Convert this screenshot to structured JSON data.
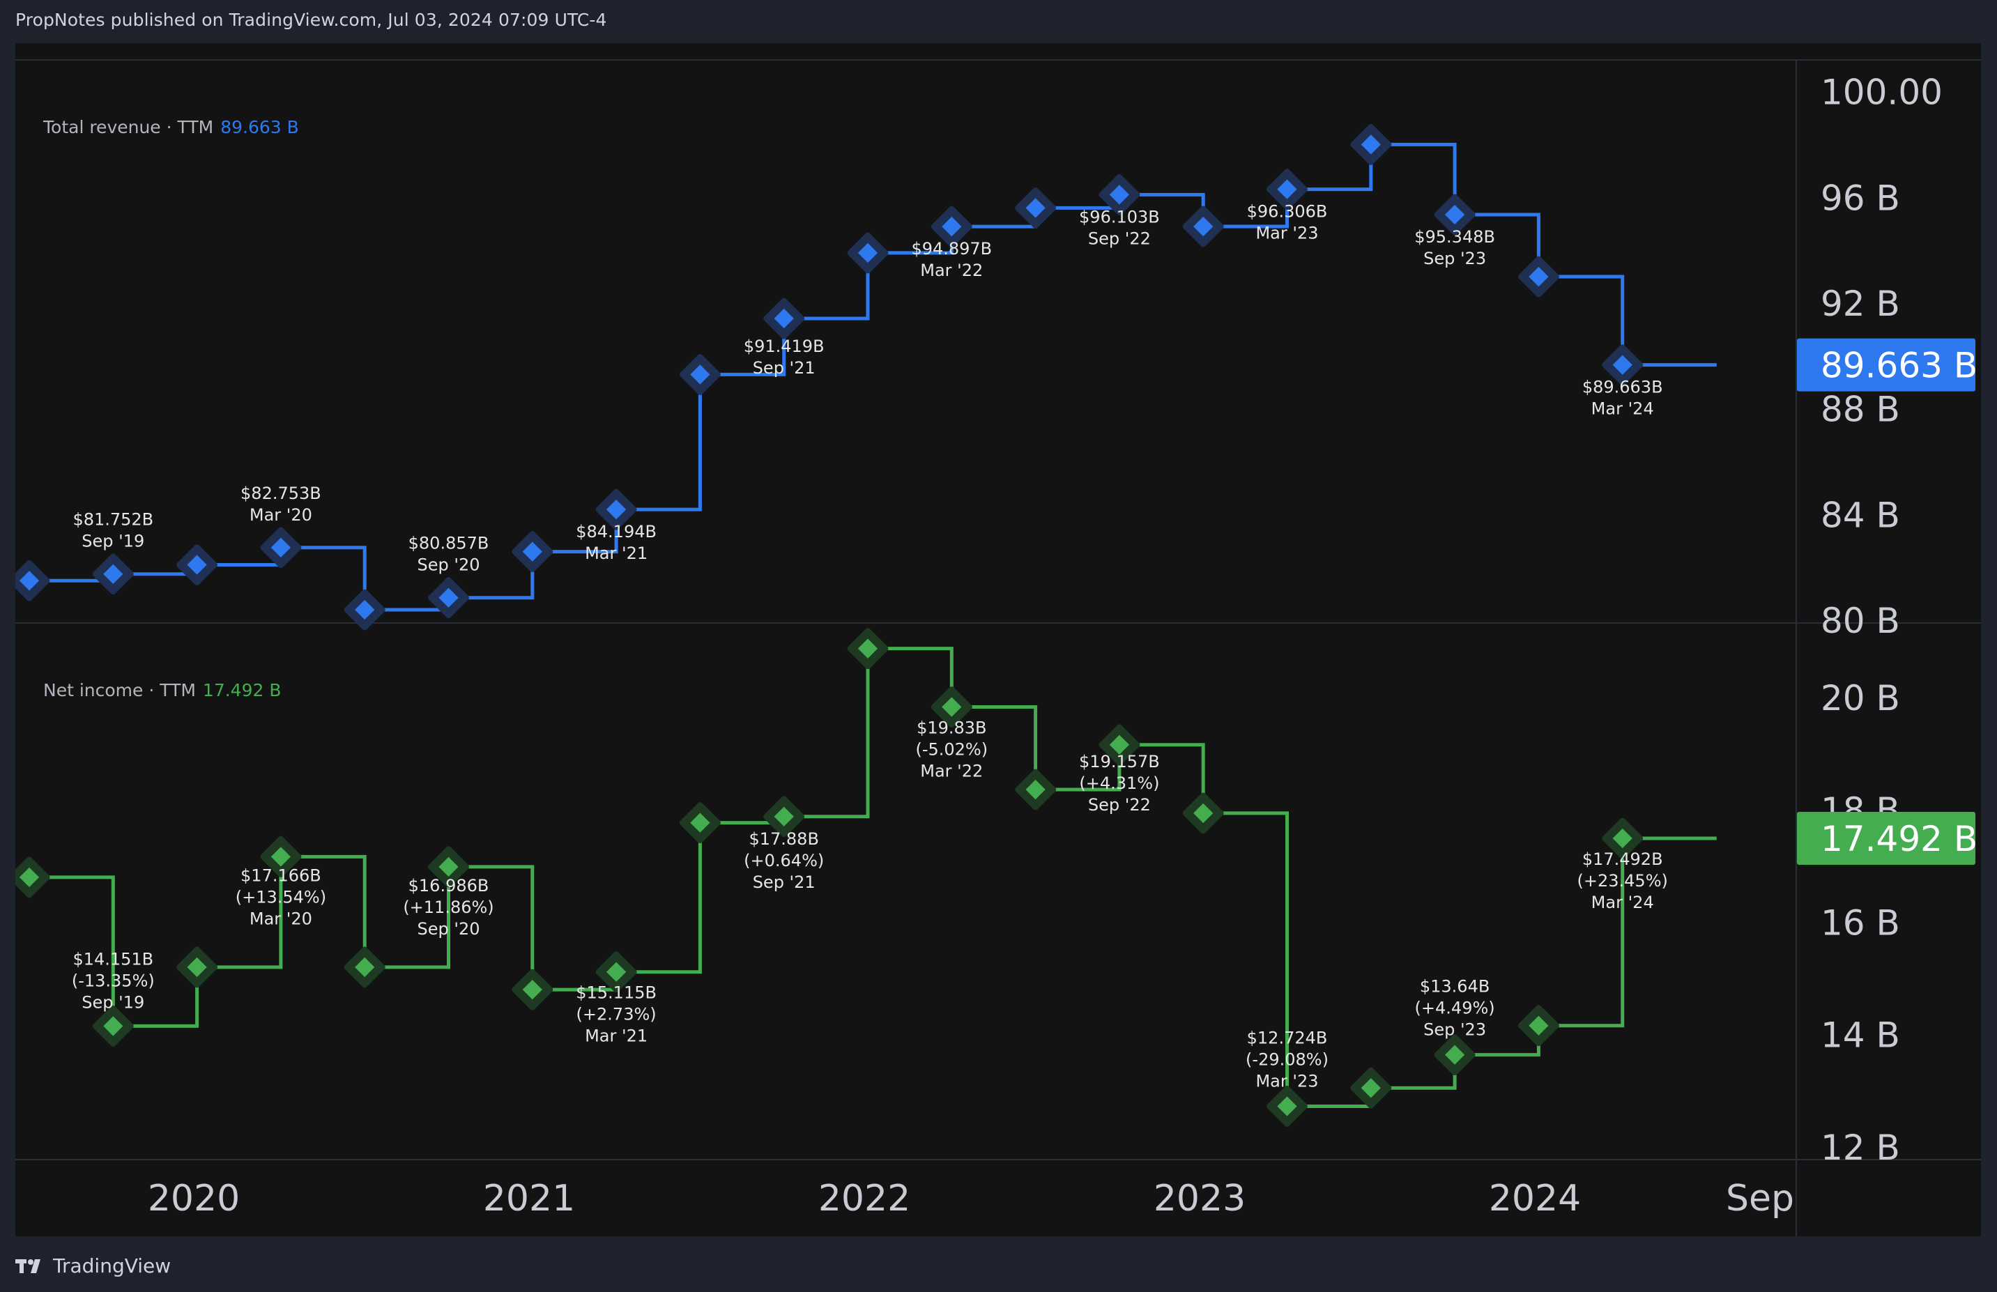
{
  "header": {
    "text": "PropNotes published on TradingView.com, Jul 03, 2024 07:09 UTC-4"
  },
  "footer": {
    "brand": "TradingView"
  },
  "colors": {
    "revenue": "#2f79f0",
    "net_income": "#43ad4f",
    "background": "#131313"
  },
  "chart_data": [
    {
      "type": "line",
      "style": "step",
      "legend": {
        "name": "Total revenue · TTM",
        "value": "89.663 B"
      },
      "y_ticks": [
        "100.00",
        "96 B",
        "92 B",
        "88 B",
        "84 B",
        "80 B"
      ],
      "ylim": [
        79.9,
        101.2
      ],
      "last_price_tag": "89.663 B",
      "x_ticks": [
        "2020",
        "2021",
        "2022",
        "2023",
        "2024",
        "Sep"
      ],
      "points": [
        {
          "x": "2019-06",
          "y": 81.5
        },
        {
          "x": "2019-09",
          "y": 81.752,
          "label": [
            "$81.752B",
            "Sep '19"
          ]
        },
        {
          "x": "2019-12",
          "y": 82.1
        },
        {
          "x": "2020-03",
          "y": 82.753,
          "label": [
            "$82.753B",
            "Mar '20"
          ]
        },
        {
          "x": "2020-06",
          "y": 80.4
        },
        {
          "x": "2020-09",
          "y": 80.857,
          "label": [
            "$80.857B",
            "Sep '20"
          ]
        },
        {
          "x": "2020-12",
          "y": 82.6
        },
        {
          "x": "2021-03",
          "y": 84.194,
          "label": [
            "$84.194B",
            "Mar '21"
          ]
        },
        {
          "x": "2021-06",
          "y": 89.3
        },
        {
          "x": "2021-09",
          "y": 91.419,
          "label": [
            "$91.419B",
            "Sep '21"
          ]
        },
        {
          "x": "2021-12",
          "y": 93.9
        },
        {
          "x": "2022-03",
          "y": 94.897,
          "label": [
            "$94.897B",
            "Mar '22"
          ]
        },
        {
          "x": "2022-06",
          "y": 95.6
        },
        {
          "x": "2022-09",
          "y": 96.103,
          "label": [
            "$96.103B",
            "Sep '22"
          ]
        },
        {
          "x": "2022-12",
          "y": 94.9
        },
        {
          "x": "2023-03",
          "y": 96.306,
          "label": [
            "$96.306B",
            "Mar '23"
          ]
        },
        {
          "x": "2023-06",
          "y": 98.0
        },
        {
          "x": "2023-09",
          "y": 95.348,
          "label": [
            "$95.348B",
            "Sep '23"
          ]
        },
        {
          "x": "2023-12",
          "y": 93.0
        },
        {
          "x": "2024-03",
          "y": 89.663,
          "label": [
            "$89.663B",
            "Mar '24"
          ]
        }
      ]
    },
    {
      "type": "line",
      "style": "step",
      "legend": {
        "name": "Net income · TTM",
        "value": "17.492 B"
      },
      "y_ticks": [
        "20 B",
        "18 B",
        "16 B",
        "14 B",
        "12 B"
      ],
      "ylim": [
        11.8,
        21.3
      ],
      "last_price_tag": "17.492 B",
      "points": [
        {
          "x": "2019-06",
          "y": 16.8
        },
        {
          "x": "2019-09",
          "y": 14.151,
          "label": [
            "$14.151B",
            "(-13.35%)",
            "Sep '19"
          ]
        },
        {
          "x": "2019-12",
          "y": 15.2
        },
        {
          "x": "2020-03",
          "y": 17.166,
          "label": [
            "$17.166B",
            "(+13.54%)",
            "Mar '20"
          ]
        },
        {
          "x": "2020-06",
          "y": 15.2
        },
        {
          "x": "2020-09",
          "y": 16.986,
          "label": [
            "$16.986B",
            "(+11.86%)",
            "Sep '20"
          ]
        },
        {
          "x": "2020-12",
          "y": 14.8
        },
        {
          "x": "2021-03",
          "y": 15.115,
          "label": [
            "$15.115B",
            "(+2.73%)",
            "Mar '21"
          ]
        },
        {
          "x": "2021-06",
          "y": 17.77
        },
        {
          "x": "2021-09",
          "y": 17.88,
          "label": [
            "$17.88B",
            "(+0.64%)",
            "Sep '21"
          ]
        },
        {
          "x": "2021-12",
          "y": 20.87
        },
        {
          "x": "2022-03",
          "y": 19.83,
          "label": [
            "$19.83B",
            "(-5.02%)",
            "Mar '22"
          ]
        },
        {
          "x": "2022-06",
          "y": 18.36
        },
        {
          "x": "2022-09",
          "y": 19.157,
          "label": [
            "$19.157B",
            "(+4.31%)",
            "Sep '22"
          ]
        },
        {
          "x": "2022-12",
          "y": 17.94
        },
        {
          "x": "2023-03",
          "y": 12.724,
          "label": [
            "$12.724B",
            "(-29.08%)",
            "Mar '23"
          ]
        },
        {
          "x": "2023-06",
          "y": 13.05
        },
        {
          "x": "2023-09",
          "y": 13.64,
          "label": [
            "$13.64B",
            "(+4.49%)",
            "Sep '23"
          ]
        },
        {
          "x": "2023-12",
          "y": 14.16
        },
        {
          "x": "2024-03",
          "y": 17.492,
          "label": [
            "$17.492B",
            "(+23.45%)",
            "Mar '24"
          ]
        }
      ]
    }
  ]
}
